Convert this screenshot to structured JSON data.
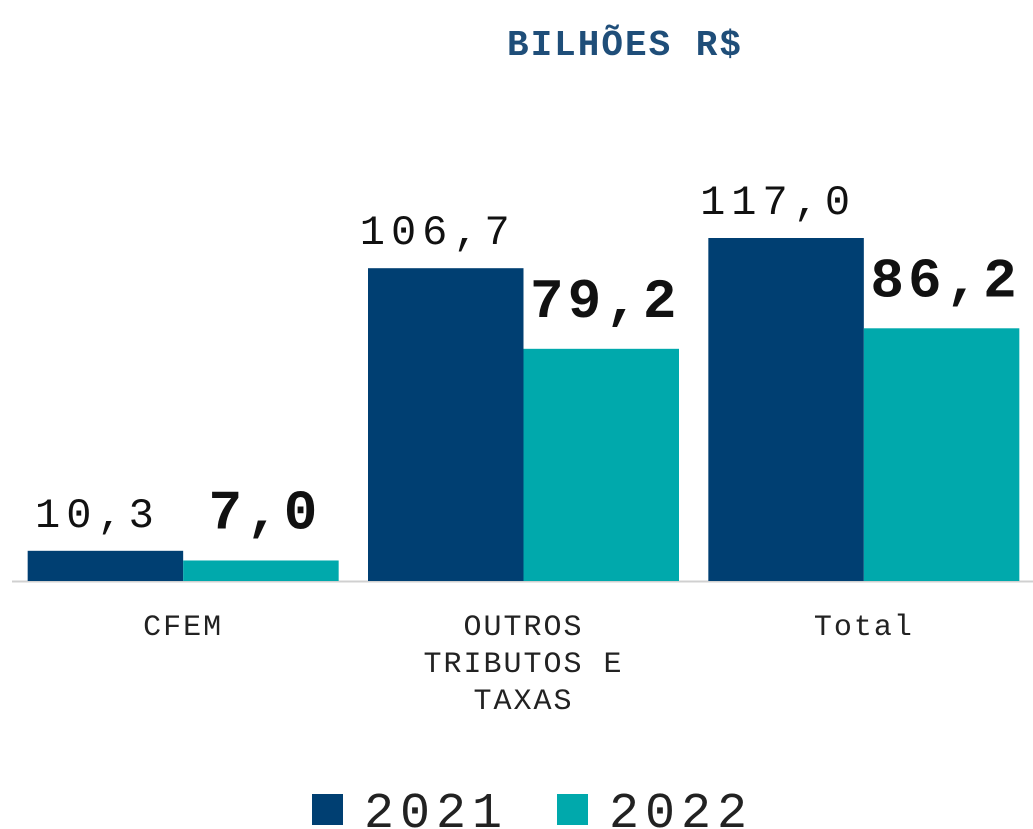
{
  "chart_data": {
    "type": "bar",
    "title": "BILHÕES R$",
    "categories": [
      "CFEM",
      "OUTROS TRIBUTOS E TAXAS",
      "Total"
    ],
    "series": [
      {
        "name": "2021",
        "color": "#003f72",
        "values": [
          10.3,
          106.7,
          117.0
        ],
        "value_labels": [
          "10,3",
          "106,7",
          "117,0"
        ]
      },
      {
        "name": "2022",
        "color": "#00a9ac",
        "values": [
          7.0,
          79.2,
          86.2
        ],
        "value_labels": [
          "7,0",
          "79,2",
          "86,2"
        ]
      }
    ]
  }
}
